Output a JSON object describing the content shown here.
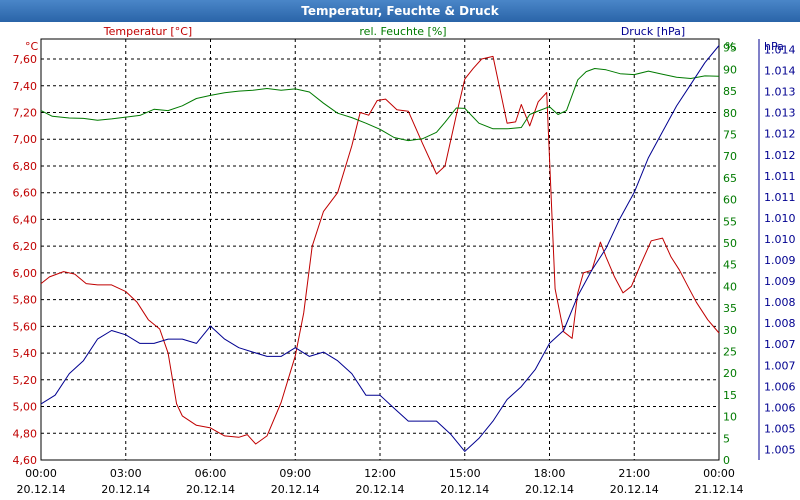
{
  "window": {
    "title": "Temperatur, Feuchte & Druck"
  },
  "chart_data": {
    "type": "line",
    "title": "Temperatur, Feuchte & Druck",
    "grid": true,
    "x_ticks": [
      {
        "time": "00:00",
        "date": "20.12.14"
      },
      {
        "time": "03:00",
        "date": "20.12.14"
      },
      {
        "time": "06:00",
        "date": "20.12.14"
      },
      {
        "time": "09:00",
        "date": "20.12.14"
      },
      {
        "time": "12:00",
        "date": "20.12.14"
      },
      {
        "time": "15:00",
        "date": "20.12.14"
      },
      {
        "time": "18:00",
        "date": "20.12.14"
      },
      {
        "time": "21:00",
        "date": "20.12.14"
      },
      {
        "time": "00:00",
        "date": "21.12.14"
      }
    ],
    "x_range_hours": [
      0,
      24
    ],
    "axes": {
      "temperature": {
        "series_label": "Temperatur [°C]",
        "unit": "°C",
        "color": "#c00000",
        "ylim": [
          4.6,
          7.75
        ],
        "ticks": [
          "4,60",
          "4,80",
          "5,00",
          "5,20",
          "5,40",
          "5,60",
          "5,80",
          "6,00",
          "6,20",
          "6,40",
          "6,60",
          "6,80",
          "7,00",
          "7,20",
          "7,40",
          "7,60"
        ]
      },
      "humidity": {
        "series_label": "rel. Feuchte [%]",
        "unit": "%",
        "color": "#007a00",
        "ylim": [
          0,
          97
        ],
        "ticks": [
          "0",
          "5",
          "10",
          "15",
          "20",
          "25",
          "30",
          "35",
          "40",
          "45",
          "50",
          "55",
          "60",
          "65",
          "70",
          "75",
          "80",
          "85",
          "90",
          "95"
        ]
      },
      "pressure": {
        "series_label": "Druck [hPa]",
        "unit": "hPa",
        "color": "#000090",
        "ylim": [
          1004.6,
          1014.35
        ],
        "ticks": [
          "1.005",
          "1.005",
          "1.006",
          "1.006",
          "1.007",
          "1.007",
          "1.008",
          "1.008",
          "1.009",
          "1.009",
          "1.010",
          "1.010",
          "1.011",
          "1.011",
          "1.012",
          "1.012",
          "1.013",
          "1.013",
          "1.014",
          "1.014"
        ]
      }
    },
    "series": [
      {
        "name": "Temperatur [°C]",
        "axis": "temperature",
        "color": "#c00000",
        "x": [
          0,
          0.3,
          0.8,
          1.2,
          1.6,
          2,
          2.5,
          3,
          3.4,
          3.8,
          4.2,
          4.5,
          4.8,
          5,
          5.5,
          6,
          6.5,
          7,
          7.3,
          7.6,
          8,
          8.5,
          9,
          9.3,
          9.6,
          10,
          10.5,
          11,
          11.3,
          11.6,
          11.9,
          12.2,
          12.6,
          13,
          13.5,
          14,
          14.3,
          14.7,
          15,
          15.3,
          15.6,
          16,
          16.5,
          16.8,
          17,
          17.3,
          17.6,
          17.9,
          18.2,
          18.5,
          18.8,
          19,
          19.2,
          19.5,
          19.8,
          20,
          20.3,
          20.6,
          20.9,
          21.2,
          21.6,
          22,
          22.3,
          22.6,
          22.9,
          23.2,
          23.6,
          24
        ],
        "values": [
          5.92,
          5.97,
          6.01,
          5.99,
          5.92,
          5.91,
          5.91,
          5.86,
          5.78,
          5.65,
          5.58,
          5.4,
          5.02,
          4.93,
          4.86,
          4.84,
          4.78,
          4.77,
          4.79,
          4.72,
          4.78,
          5.03,
          5.38,
          5.7,
          6.2,
          6.46,
          6.6,
          6.95,
          7.2,
          7.18,
          7.29,
          7.3,
          7.22,
          7.21,
          6.97,
          6.74,
          6.8,
          7.18,
          7.45,
          7.53,
          7.6,
          7.62,
          7.12,
          7.13,
          7.26,
          7.1,
          7.28,
          7.35,
          5.88,
          5.56,
          5.51,
          5.85,
          6.0,
          6.02,
          6.23,
          6.12,
          5.97,
          5.85,
          5.9,
          6.05,
          6.24,
          6.26,
          6.12,
          6.02,
          5.9,
          5.78,
          5.65,
          5.55
        ]
      },
      {
        "name": "rel. Feuchte [%]",
        "axis": "humidity",
        "color": "#007a00",
        "x": [
          0,
          0.4,
          1,
          1.5,
          2,
          2.5,
          3,
          3.5,
          4,
          4.5,
          5,
          5.5,
          6,
          6.5,
          7,
          7.5,
          8,
          8.5,
          9,
          9.5,
          10,
          10.5,
          11,
          11.5,
          12,
          12.5,
          13,
          13.5,
          14,
          14.3,
          14.7,
          15,
          15.5,
          16,
          16.5,
          17,
          17.3,
          17.6,
          18,
          18.3,
          18.6,
          19,
          19.3,
          19.6,
          20,
          20.5,
          21,
          21.5,
          22,
          22.5,
          23,
          23.5,
          24
        ],
        "values": [
          80.5,
          79.2,
          78.8,
          78.7,
          78.3,
          78.6,
          79,
          79.4,
          80.8,
          80.5,
          81.6,
          83.3,
          84,
          84.6,
          85,
          85.2,
          85.6,
          85.2,
          85.5,
          84.8,
          82.2,
          79.9,
          78.9,
          77.6,
          76.2,
          74.3,
          73.6,
          74,
          75.5,
          77.8,
          81.1,
          81,
          77.6,
          76.3,
          76.3,
          76.6,
          79.6,
          80.4,
          81.4,
          79.6,
          80.5,
          87.6,
          89.5,
          90.2,
          89.9,
          89,
          88.8,
          89.6,
          88.9,
          88.2,
          87.9,
          88.5,
          88.4
        ]
      },
      {
        "name": "Druck [hPa]",
        "axis": "pressure",
        "color": "#000090",
        "x": [
          0,
          0.5,
          1,
          1.5,
          2,
          2.5,
          3,
          3.5,
          4,
          4.5,
          5,
          5.5,
          6,
          6.5,
          7,
          7.5,
          8,
          8.5,
          9,
          9.5,
          10,
          10.5,
          11,
          11.5,
          12,
          12.5,
          13,
          13.5,
          14,
          14.5,
          15,
          15.5,
          16,
          16.5,
          17,
          17.5,
          18,
          18.5,
          19,
          19.5,
          20,
          20.5,
          21,
          21.5,
          22,
          22.5,
          23,
          23.5,
          24
        ],
        "values": [
          1005.9,
          1006.1,
          1006.6,
          1006.9,
          1007.4,
          1007.6,
          1007.5,
          1007.3,
          1007.3,
          1007.4,
          1007.4,
          1007.3,
          1007.7,
          1007.4,
          1007.2,
          1007.1,
          1007.0,
          1007.0,
          1007.2,
          1007.0,
          1007.1,
          1006.9,
          1006.6,
          1006.1,
          1006.1,
          1005.8,
          1005.5,
          1005.5,
          1005.5,
          1005.2,
          1004.8,
          1005.1,
          1005.5,
          1006.0,
          1006.3,
          1006.7,
          1007.3,
          1007.6,
          1008.4,
          1009.0,
          1009.5,
          1010.2,
          1010.8,
          1011.6,
          1012.2,
          1012.8,
          1013.3,
          1013.8,
          1014.2
        ]
      }
    ]
  }
}
